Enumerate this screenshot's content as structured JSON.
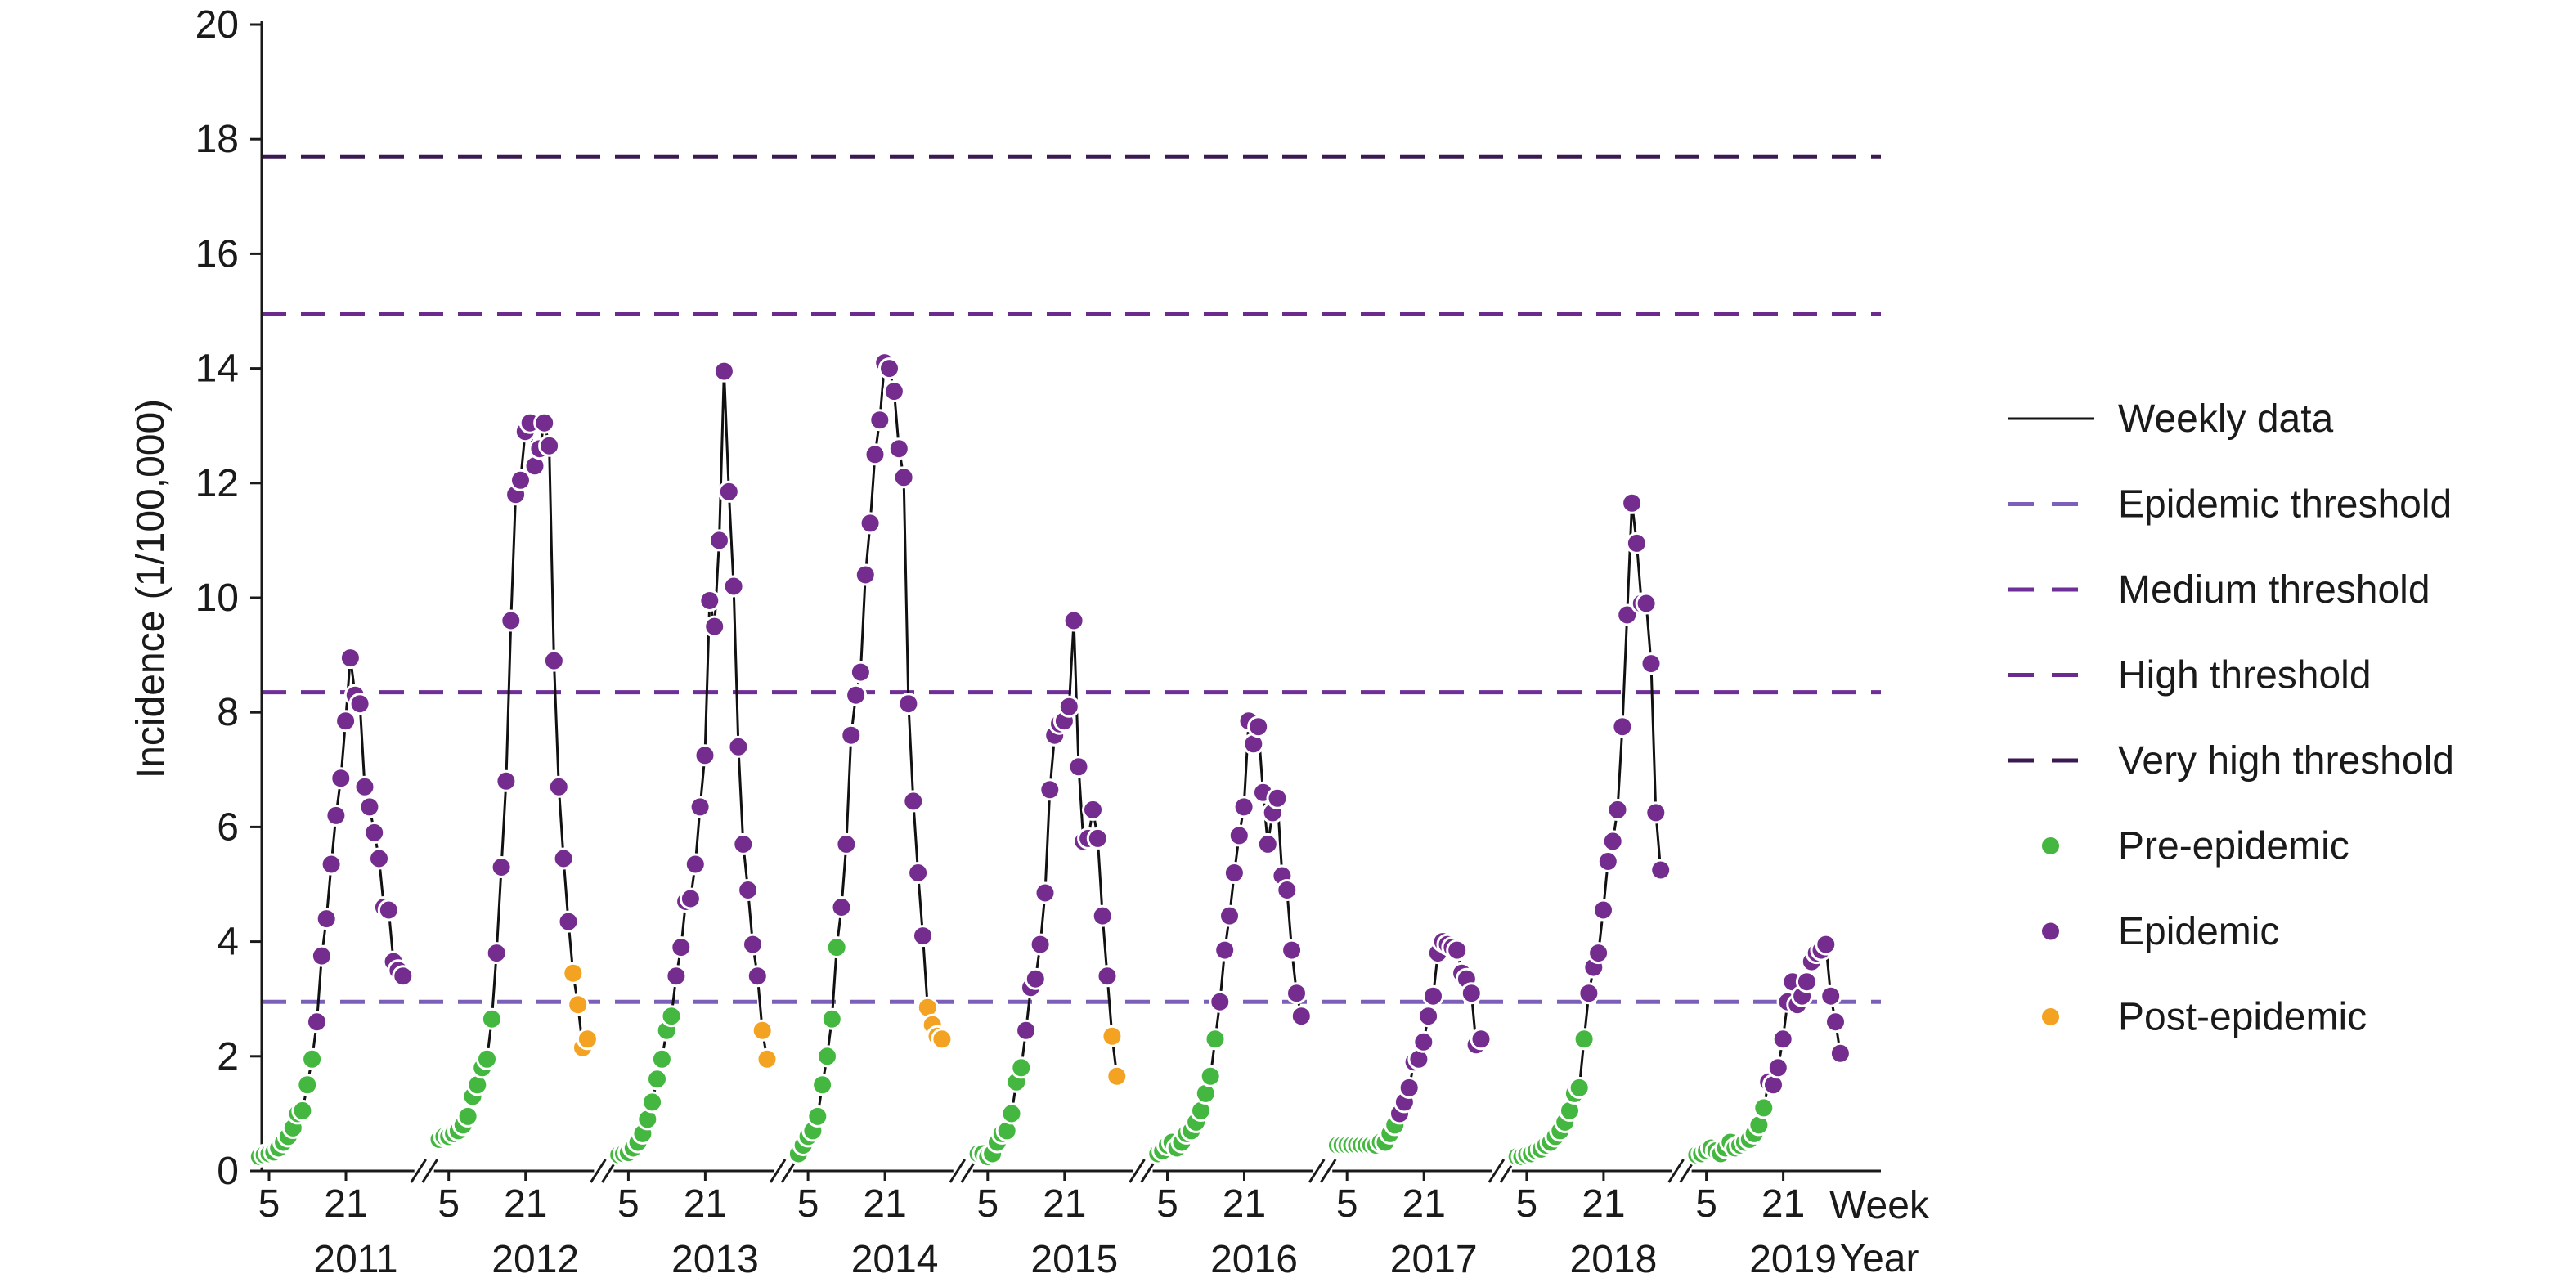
{
  "chart_data": {
    "type": "line",
    "ylabel": "Incidence (1/100,000)",
    "xlabel_week": "Week",
    "xlabel_year": "Year",
    "ylim": [
      0,
      20
    ],
    "yticks": [
      "0",
      "2",
      "4",
      "6",
      "8",
      "10",
      "12",
      "14",
      "16",
      "18",
      "20"
    ],
    "week_ticks": [
      "5",
      "21"
    ],
    "thresholds": [
      {
        "key": "epidemic",
        "label": "Epidemic threshold",
        "value": 2.95,
        "color": "#7b5fb8"
      },
      {
        "key": "medium",
        "label": "Medium threshold",
        "value": 8.35,
        "color": "#6e2f98"
      },
      {
        "key": "high",
        "label": "High threshold",
        "value": 14.95,
        "color": "#6a2a8e"
      },
      {
        "key": "very_high",
        "label": "Very high threshold",
        "value": 17.7,
        "color": "#3b1a52"
      }
    ],
    "phase_colors": {
      "pre": "#43b73f",
      "epi": "#742c8e",
      "post": "#f3a222"
    },
    "legend": [
      {
        "kind": "line",
        "label": "Weekly data"
      },
      {
        "kind": "dash",
        "ref": "epidemic",
        "label": "Epidemic threshold"
      },
      {
        "kind": "dash",
        "ref": "medium",
        "label": "Medium threshold"
      },
      {
        "kind": "dash",
        "ref": "high",
        "label": "High threshold"
      },
      {
        "kind": "dash",
        "ref": "very_high",
        "label": "Very high threshold"
      },
      {
        "kind": "dot",
        "ref": "pre",
        "label": "Pre-epidemic"
      },
      {
        "kind": "dot",
        "ref": "epi",
        "label": "Epidemic"
      },
      {
        "kind": "dot",
        "ref": "post",
        "label": "Post-epidemic"
      }
    ],
    "seasons": [
      {
        "year": "2011",
        "start_week": 3,
        "pre": [
          0.25,
          0.28,
          0.3,
          0.33,
          0.4,
          0.5,
          0.6,
          0.75,
          1.0,
          1.05,
          1.5,
          1.95
        ],
        "epi": [
          2.6,
          3.75,
          4.4,
          5.35,
          6.2,
          6.85,
          7.85,
          8.95,
          8.3,
          8.15,
          6.7,
          6.35,
          5.9,
          5.45,
          4.6,
          4.55,
          3.65,
          3.5,
          3.4
        ],
        "post": []
      },
      {
        "year": "2012",
        "start_week": 3,
        "pre": [
          0.55,
          0.6,
          0.6,
          0.65,
          0.7,
          0.8,
          0.95,
          1.3,
          1.5,
          1.8,
          1.95,
          2.65
        ],
        "epi": [
          3.8,
          5.3,
          6.8,
          9.6,
          11.8,
          12.05,
          12.9,
          13.05,
          12.3,
          12.6,
          13.05,
          12.65,
          8.9,
          6.7,
          5.45,
          4.35
        ],
        "post": [
          3.45,
          2.9,
          2.15,
          2.3
        ]
      },
      {
        "year": "2013",
        "start_week": 3,
        "pre": [
          0.28,
          0.3,
          0.32,
          0.4,
          0.5,
          0.65,
          0.9,
          1.2,
          1.6,
          1.95,
          2.45,
          2.7
        ],
        "epi": [
          3.4,
          3.9,
          4.7,
          4.75,
          5.35,
          6.35,
          7.25,
          9.95,
          9.5,
          11.0,
          13.95,
          11.85,
          10.2,
          7.4,
          5.7,
          4.9,
          3.95,
          3.4
        ],
        "post": [
          2.45,
          1.95
        ]
      },
      {
        "year": "2014",
        "start_week": 3,
        "pre": [
          0.3,
          0.45,
          0.6,
          0.7,
          0.95,
          1.5,
          2.0,
          2.65,
          3.9
        ],
        "epi": [
          4.6,
          5.7,
          7.6,
          8.3,
          8.7,
          10.4,
          11.3,
          12.5,
          13.1,
          14.1,
          14.0,
          13.6,
          12.6,
          12.1,
          8.15,
          6.45,
          5.2,
          4.1
        ],
        "post": [
          2.85,
          2.55,
          2.35,
          2.3
        ]
      },
      {
        "year": "2015",
        "start_week": 3,
        "pre": [
          0.3,
          0.3,
          0.25,
          0.3,
          0.5,
          0.65,
          0.7,
          1.0,
          1.55,
          1.8
        ],
        "epi": [
          2.45,
          3.2,
          3.35,
          3.95,
          4.85,
          6.65,
          7.6,
          7.8,
          7.85,
          8.1,
          9.6,
          7.05,
          5.75,
          5.8,
          6.3,
          5.8,
          4.45,
          3.4
        ],
        "post": [
          2.35,
          1.65
        ]
      },
      {
        "year": "2016",
        "start_week": 3,
        "pre": [
          0.3,
          0.35,
          0.45,
          0.5,
          0.4,
          0.5,
          0.65,
          0.7,
          0.85,
          1.05,
          1.35,
          1.65,
          2.3
        ],
        "epi": [
          2.95,
          3.85,
          4.45,
          5.2,
          5.85,
          6.35,
          7.85,
          7.45,
          7.75,
          6.6,
          5.7,
          6.25,
          6.5,
          5.15,
          4.9,
          3.85,
          3.1,
          2.7
        ],
        "post": []
      },
      {
        "year": "2017",
        "start_week": 3,
        "pre": [
          0.45,
          0.45,
          0.45,
          0.45,
          0.45,
          0.45,
          0.45,
          0.45,
          0.45,
          0.5,
          0.5,
          0.65,
          0.8
        ],
        "epi": [
          1.0,
          1.2,
          1.45,
          1.9,
          1.95,
          2.25,
          2.7,
          3.05,
          3.8,
          4.0,
          3.95,
          3.9,
          3.85,
          3.45,
          3.35,
          3.1,
          2.2,
          2.3
        ],
        "post": []
      },
      {
        "year": "2018",
        "start_week": 3,
        "pre": [
          0.25,
          0.25,
          0.28,
          0.3,
          0.35,
          0.38,
          0.45,
          0.5,
          0.6,
          0.7,
          0.85,
          1.05,
          1.35,
          1.45,
          2.3
        ],
        "epi": [
          3.1,
          3.55,
          3.8,
          4.55,
          5.4,
          5.75,
          6.3,
          7.75,
          9.7,
          11.65,
          10.95,
          9.9,
          9.9,
          8.85,
          6.25,
          5.25
        ],
        "post": []
      },
      {
        "year": "2019",
        "start_week": 3,
        "pre": [
          0.28,
          0.3,
          0.35,
          0.4,
          0.35,
          0.3,
          0.4,
          0.5,
          0.4,
          0.45,
          0.5,
          0.55,
          0.65,
          0.8,
          1.1
        ],
        "epi": [
          1.55,
          1.5,
          1.8,
          2.3,
          2.95,
          3.3,
          2.9,
          3.05,
          3.3,
          3.65,
          3.8,
          3.85,
          3.95,
          3.05,
          2.6,
          2.05
        ],
        "post": []
      }
    ]
  }
}
